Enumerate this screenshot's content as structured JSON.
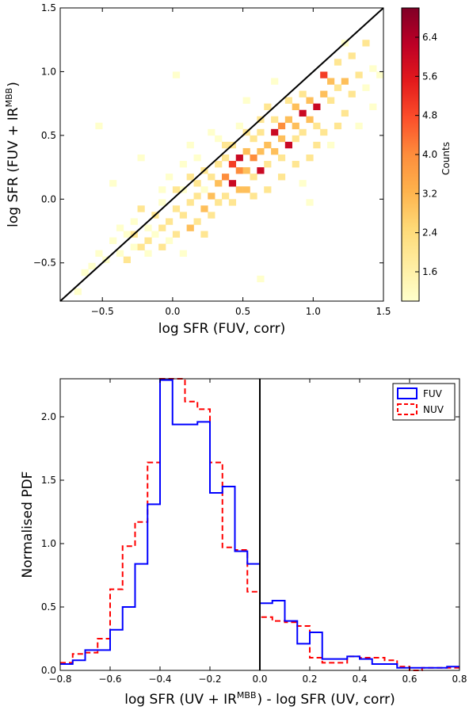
{
  "chart_data": [
    {
      "type": "heatmap",
      "xlabel": "log SFR (FUV, corr)",
      "ylabel_main": "log SFR (FUV + IR",
      "ylabel_sup": "MBB",
      "ylabel_end": ")",
      "xlim": [
        -0.8,
        1.5
      ],
      "ylim": [
        -0.8,
        1.5
      ],
      "xticks": [
        -0.5,
        0.0,
        0.5,
        1.0,
        1.5
      ],
      "yticks": [
        -0.5,
        0.0,
        0.5,
        1.0,
        1.5
      ],
      "xtick_labels": [
        "−0.5",
        "0.0",
        "0.5",
        "1.0",
        "1.5"
      ],
      "ytick_labels": [
        "−0.5",
        "0.0",
        "0.5",
        "1.0",
        "1.5"
      ],
      "colorbar": {
        "label": "Counts",
        "range": [
          1.0,
          7.0
        ],
        "ticks": [
          1.6,
          2.4,
          3.2,
          4.0,
          4.8,
          5.6,
          6.4
        ],
        "tick_labels": [
          "1.6",
          "2.4",
          "3.2",
          "4.0",
          "4.8",
          "5.6",
          "6.4"
        ],
        "colormap": [
          "#ffffcc",
          "#ffeda0",
          "#fed976",
          "#feb24c",
          "#fd8d3c",
          "#fc4e2a",
          "#e31a1c",
          "#bd0026",
          "#800026"
        ]
      },
      "one_to_one_line": {
        "from": [
          -0.8,
          -0.8
        ],
        "to": [
          1.5,
          1.5
        ]
      },
      "bin_width": 0.05,
      "cells": [
        [
          -0.7,
          -0.75,
          1
        ],
        [
          -0.65,
          -0.6,
          1
        ],
        [
          -0.55,
          -0.45,
          1
        ],
        [
          -0.6,
          -0.55,
          1
        ],
        [
          -0.5,
          -0.5,
          1
        ],
        [
          -0.45,
          0.1,
          1
        ],
        [
          -0.4,
          -0.25,
          1
        ],
        [
          -0.4,
          -0.45,
          1
        ],
        [
          -0.35,
          -0.3,
          1
        ],
        [
          -0.3,
          -0.2,
          1
        ],
        [
          -0.3,
          -0.4,
          1
        ],
        [
          -0.55,
          0.55,
          1
        ],
        [
          -0.25,
          0.3,
          1
        ],
        [
          -0.2,
          -0.25,
          1
        ],
        [
          -0.2,
          -0.45,
          1
        ],
        [
          -0.15,
          -0.3,
          1
        ],
        [
          -0.15,
          -0.15,
          2
        ],
        [
          -0.1,
          -0.25,
          2
        ],
        [
          -0.1,
          -0.05,
          1
        ],
        [
          -0.05,
          -0.2,
          2
        ],
        [
          -0.05,
          -0.35,
          1
        ],
        [
          0.0,
          -0.1,
          2
        ],
        [
          0.0,
          -0.3,
          2
        ],
        [
          0.05,
          0.05,
          1
        ],
        [
          0.05,
          -0.15,
          2
        ],
        [
          0.05,
          -0.45,
          1
        ],
        [
          0.1,
          -0.05,
          2
        ],
        [
          0.1,
          -0.25,
          3
        ],
        [
          0.1,
          0.4,
          1
        ],
        [
          0.15,
          0.0,
          2
        ],
        [
          0.15,
          -0.2,
          2
        ],
        [
          0.15,
          0.1,
          2
        ],
        [
          0.2,
          -0.1,
          3
        ],
        [
          0.2,
          0.05,
          1
        ],
        [
          0.2,
          -0.3,
          2
        ],
        [
          0.25,
          0.0,
          3
        ],
        [
          0.25,
          -0.15,
          2
        ],
        [
          0.25,
          0.15,
          2
        ],
        [
          0.3,
          0.1,
          3
        ],
        [
          0.3,
          -0.05,
          2
        ],
        [
          0.3,
          0.25,
          2
        ],
        [
          0.35,
          0.15,
          4
        ],
        [
          0.35,
          0.0,
          2
        ],
        [
          0.35,
          0.3,
          2
        ],
        [
          0.4,
          0.25,
          5
        ],
        [
          0.4,
          0.1,
          6
        ],
        [
          0.4,
          -0.05,
          2
        ],
        [
          0.4,
          0.4,
          2
        ],
        [
          0.45,
          0.2,
          4
        ],
        [
          0.45,
          0.3,
          6
        ],
        [
          0.45,
          0.05,
          3
        ],
        [
          0.5,
          0.35,
          3
        ],
        [
          0.5,
          0.2,
          3
        ],
        [
          0.5,
          0.5,
          2
        ],
        [
          0.55,
          0.3,
          4
        ],
        [
          0.55,
          0.45,
          2
        ],
        [
          0.55,
          0.15,
          2
        ],
        [
          0.6,
          0.35,
          3
        ],
        [
          0.6,
          0.5,
          2
        ],
        [
          0.6,
          0.2,
          6
        ],
        [
          0.65,
          0.4,
          3
        ],
        [
          0.65,
          0.25,
          2
        ],
        [
          0.7,
          0.5,
          6
        ],
        [
          0.7,
          0.35,
          3
        ],
        [
          0.7,
          0.6,
          2
        ],
        [
          0.75,
          0.45,
          3
        ],
        [
          0.75,
          0.55,
          4
        ],
        [
          0.75,
          0.3,
          2
        ],
        [
          0.8,
          0.6,
          3
        ],
        [
          0.8,
          0.4,
          6
        ],
        [
          0.8,
          0.75,
          2
        ],
        [
          0.85,
          0.55,
          3
        ],
        [
          0.85,
          0.7,
          3
        ],
        [
          0.85,
          0.45,
          2
        ],
        [
          0.9,
          0.65,
          6
        ],
        [
          0.9,
          0.5,
          2
        ],
        [
          0.9,
          0.8,
          2
        ],
        [
          0.95,
          0.6,
          3
        ],
        [
          0.95,
          0.75,
          3
        ],
        [
          1.0,
          0.7,
          6
        ],
        [
          1.0,
          0.55,
          2
        ],
        [
          1.05,
          0.8,
          3
        ],
        [
          1.05,
          0.95,
          5
        ],
        [
          1.1,
          0.75,
          2
        ],
        [
          1.1,
          0.9,
          3
        ],
        [
          1.15,
          0.85,
          2
        ],
        [
          1.15,
          1.05,
          2
        ],
        [
          1.2,
          0.9,
          3
        ],
        [
          1.2,
          0.65,
          2
        ],
        [
          1.25,
          1.1,
          2
        ],
        [
          1.25,
          0.8,
          2
        ],
        [
          1.3,
          0.95,
          2
        ],
        [
          1.35,
          1.2,
          2
        ],
        [
          1.35,
          0.85,
          1
        ],
        [
          1.4,
          0.7,
          1
        ],
        [
          1.4,
          1.0,
          1
        ],
        [
          1.3,
          0.55,
          1
        ],
        [
          1.2,
          1.2,
          1
        ],
        [
          -0.1,
          0.05,
          1
        ],
        [
          0.05,
          0.25,
          1
        ],
        [
          -0.35,
          -0.5,
          2
        ],
        [
          -0.25,
          -0.4,
          2
        ],
        [
          -0.45,
          -0.35,
          1
        ],
        [
          0.6,
          -0.65,
          1
        ],
        [
          0.5,
          0.75,
          1
        ],
        [
          0.9,
          0.1,
          1
        ],
        [
          0.7,
          0.9,
          1
        ],
        [
          1.1,
          0.4,
          1
        ],
        [
          0.0,
          0.95,
          1
        ],
        [
          0.25,
          0.5,
          1
        ],
        [
          0.95,
          -0.05,
          1
        ],
        [
          1.45,
          0.95,
          1
        ],
        [
          0.6,
          0.6,
          2
        ],
        [
          0.65,
          0.7,
          2
        ],
        [
          0.45,
          0.55,
          1
        ],
        [
          0.3,
          0.45,
          1
        ],
        [
          0.15,
          0.3,
          1
        ],
        [
          -0.05,
          0.15,
          1
        ],
        [
          0.2,
          0.2,
          2
        ],
        [
          0.35,
          0.4,
          2
        ],
        [
          0.5,
          0.05,
          3
        ],
        [
          0.55,
          0.0,
          2
        ],
        [
          0.65,
          0.05,
          2
        ],
        [
          0.75,
          0.15,
          2
        ],
        [
          0.85,
          0.25,
          2
        ],
        [
          0.95,
          0.3,
          2
        ],
        [
          1.0,
          0.4,
          2
        ],
        [
          1.05,
          0.5,
          2
        ],
        [
          1.15,
          0.55,
          2
        ],
        [
          -0.25,
          -0.1,
          2
        ],
        [
          -0.3,
          -0.3,
          2
        ],
        [
          -0.2,
          -0.35,
          2
        ],
        [
          0.1,
          0.15,
          2
        ],
        [
          0.0,
          0.05,
          2
        ],
        [
          -0.1,
          -0.4,
          2
        ]
      ]
    },
    {
      "type": "line",
      "xlabel_main": "log SFR (UV + IR",
      "xlabel_sup": "MBB",
      "xlabel_end": ") - log SFR (UV, corr)",
      "ylabel": "Normalised PDF",
      "xlim": [
        -0.8,
        0.8
      ],
      "ylim": [
        0.0,
        2.3
      ],
      "xticks": [
        -0.8,
        -0.6,
        -0.4,
        -0.2,
        0.0,
        0.2,
        0.4,
        0.6,
        0.8
      ],
      "yticks": [
        0.0,
        0.5,
        1.0,
        1.5,
        2.0
      ],
      "xtick_labels": [
        "−0.8",
        "−0.6",
        "−0.4",
        "−0.2",
        "0.0",
        "0.2",
        "0.4",
        "0.6",
        "0.8"
      ],
      "ytick_labels": [
        "0.0",
        "0.5",
        "1.0",
        "1.5",
        "2.0"
      ],
      "vline_x": 0.0,
      "legend_position": "top-right",
      "bin_edges": [
        -0.8,
        -0.75,
        -0.7,
        -0.65,
        -0.6,
        -0.55,
        -0.5,
        -0.45,
        -0.4,
        -0.35,
        -0.3,
        -0.25,
        -0.2,
        -0.15,
        -0.1,
        -0.05,
        0.0,
        0.05,
        0.1,
        0.15,
        0.2,
        0.25,
        0.3,
        0.35,
        0.4,
        0.45,
        0.5,
        0.55,
        0.6,
        0.65,
        0.7,
        0.75,
        0.8
      ],
      "series": [
        {
          "name": "FUV",
          "color": "#0000ff",
          "style": "solid",
          "values": [
            0.05,
            0.08,
            0.16,
            0.16,
            0.32,
            0.5,
            0.84,
            1.31,
            2.29,
            1.94,
            1.94,
            1.96,
            1.4,
            1.45,
            0.94,
            0.84,
            0.53,
            0.55,
            0.39,
            0.21,
            0.3,
            0.09,
            0.09,
            0.11,
            0.09,
            0.05,
            0.05,
            0.02,
            0.02,
            0.02,
            0.02,
            0.03
          ]
        },
        {
          "name": "NUV",
          "color": "#ff0000",
          "style": "dashed",
          "values": [
            0.06,
            0.13,
            0.14,
            0.25,
            0.64,
            0.98,
            1.17,
            1.64,
            2.3,
            2.42,
            2.12,
            2.06,
            1.64,
            0.97,
            0.95,
            0.62,
            0.42,
            0.39,
            0.38,
            0.35,
            0.1,
            0.06,
            0.06,
            0.11,
            0.1,
            0.1,
            0.08,
            0.03,
            0.0,
            0.02,
            0.02,
            0.02
          ]
        }
      ]
    }
  ]
}
